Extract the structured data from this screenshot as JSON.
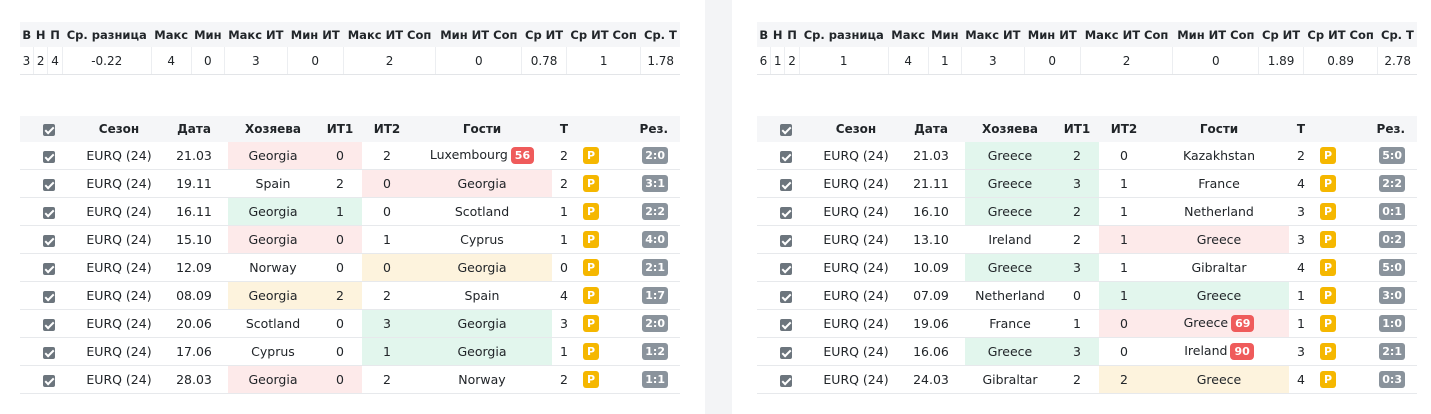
{
  "panels": [
    {
      "summary": {
        "headers": [
          "В",
          "Н",
          "П",
          "Ср. разница",
          "Макс",
          "Мин",
          "Макс ИТ",
          "Мин ИТ",
          "Макс ИТ Соп",
          "Мин ИТ Соп",
          "Ср ИТ",
          "Ср ИТ Соп",
          "Ср. Т"
        ],
        "values": [
          "3",
          "2",
          "4",
          "-0.22",
          "4",
          "0",
          "3",
          "0",
          "2",
          "0",
          "0.78",
          "1",
          "1.78"
        ]
      },
      "matches": {
        "headers": [
          "Сезон",
          "Дата",
          "Хозяева",
          "ИТ1",
          "ИТ2",
          "Гости",
          "Т",
          "Рез."
        ],
        "rows": [
          {
            "season": "EURQ (24)",
            "date": "21.03",
            "home": "Georgia",
            "it1": "0",
            "it2": "2",
            "away": "Luxembourg",
            "away_badge": "56",
            "t": "2",
            "p": "P",
            "result": "2:0",
            "highlight": {
              "side": "home",
              "color": "#fdeaea"
            }
          },
          {
            "season": "EURQ (24)",
            "date": "19.11",
            "home": "Spain",
            "it1": "2",
            "it2": "0",
            "away": "Georgia",
            "t": "2",
            "p": "P",
            "result": "3:1",
            "highlight": {
              "side": "away",
              "color": "#fdeaea"
            }
          },
          {
            "season": "EURQ (24)",
            "date": "16.11",
            "home": "Georgia",
            "it1": "1",
            "it2": "0",
            "away": "Scotland",
            "t": "1",
            "p": "P",
            "result": "2:2",
            "highlight": {
              "side": "home",
              "color": "#e2f6ed"
            }
          },
          {
            "season": "EURQ (24)",
            "date": "15.10",
            "home": "Georgia",
            "it1": "0",
            "it2": "1",
            "away": "Cyprus",
            "t": "1",
            "p": "P",
            "result": "4:0",
            "highlight": {
              "side": "home",
              "color": "#fdeaea"
            }
          },
          {
            "season": "EURQ (24)",
            "date": "12.09",
            "home": "Norway",
            "it1": "0",
            "it2": "0",
            "away": "Georgia",
            "t": "0",
            "p": "P",
            "result": "2:1",
            "highlight": {
              "side": "away",
              "color": "#fdf3dd"
            }
          },
          {
            "season": "EURQ (24)",
            "date": "08.09",
            "home": "Georgia",
            "it1": "2",
            "it2": "2",
            "away": "Spain",
            "t": "4",
            "p": "P",
            "result": "1:7",
            "highlight": {
              "side": "home",
              "color": "#fdf3dd"
            }
          },
          {
            "season": "EURQ (24)",
            "date": "20.06",
            "home": "Scotland",
            "it1": "0",
            "it2": "3",
            "away": "Georgia",
            "t": "3",
            "p": "P",
            "result": "2:0",
            "highlight": {
              "side": "away",
              "color": "#e2f6ed"
            }
          },
          {
            "season": "EURQ (24)",
            "date": "17.06",
            "home": "Cyprus",
            "it1": "0",
            "it2": "1",
            "away": "Georgia",
            "t": "1",
            "p": "P",
            "result": "1:2",
            "highlight": {
              "side": "away",
              "color": "#e2f6ed"
            }
          },
          {
            "season": "EURQ (24)",
            "date": "28.03",
            "home": "Georgia",
            "it1": "0",
            "it2": "2",
            "away": "Norway",
            "t": "2",
            "p": "P",
            "result": "1:1",
            "highlight": {
              "side": "home",
              "color": "#fdeaea"
            }
          }
        ]
      }
    },
    {
      "summary": {
        "headers": [
          "В",
          "Н",
          "П",
          "Ср. разница",
          "Макс",
          "Мин",
          "Макс ИТ",
          "Мин ИТ",
          "Макс ИТ Соп",
          "Мин ИТ Соп",
          "Ср ИТ",
          "Ср ИТ Соп",
          "Ср. Т"
        ],
        "values": [
          "6",
          "1",
          "2",
          "1",
          "4",
          "1",
          "3",
          "0",
          "2",
          "0",
          "1.89",
          "0.89",
          "2.78"
        ]
      },
      "matches": {
        "headers": [
          "Сезон",
          "Дата",
          "Хозяева",
          "ИТ1",
          "ИТ2",
          "Гости",
          "Т",
          "Рез."
        ],
        "rows": [
          {
            "season": "EURQ (24)",
            "date": "21.03",
            "home": "Greece",
            "it1": "2",
            "it2": "0",
            "away": "Kazakhstan",
            "t": "2",
            "p": "P",
            "result": "5:0",
            "highlight": {
              "side": "home",
              "color": "#e2f6ed"
            }
          },
          {
            "season": "EURQ (24)",
            "date": "21.11",
            "home": "Greece",
            "it1": "3",
            "it2": "1",
            "away": "France",
            "t": "4",
            "p": "P",
            "result": "2:2",
            "highlight": {
              "side": "home",
              "color": "#e2f6ed"
            }
          },
          {
            "season": "EURQ (24)",
            "date": "16.10",
            "home": "Greece",
            "it1": "2",
            "it2": "1",
            "away": "Netherland",
            "t": "3",
            "p": "P",
            "result": "0:1",
            "highlight": {
              "side": "home",
              "color": "#e2f6ed"
            }
          },
          {
            "season": "EURQ (24)",
            "date": "13.10",
            "home": "Ireland",
            "it1": "2",
            "it2": "1",
            "away": "Greece",
            "t": "3",
            "p": "P",
            "result": "0:2",
            "highlight": {
              "side": "away",
              "color": "#fdeaea"
            }
          },
          {
            "season": "EURQ (24)",
            "date": "10.09",
            "home": "Greece",
            "it1": "3",
            "it2": "1",
            "away": "Gibraltar",
            "t": "4",
            "p": "P",
            "result": "5:0",
            "highlight": {
              "side": "home",
              "color": "#e2f6ed"
            }
          },
          {
            "season": "EURQ (24)",
            "date": "07.09",
            "home": "Netherland",
            "it1": "0",
            "it2": "1",
            "away": "Greece",
            "t": "1",
            "p": "P",
            "result": "3:0",
            "highlight": {
              "side": "away",
              "color": "#e2f6ed"
            }
          },
          {
            "season": "EURQ (24)",
            "date": "19.06",
            "home": "France",
            "it1": "1",
            "it2": "0",
            "away": "Greece",
            "away_badge": "69",
            "t": "1",
            "p": "P",
            "result": "1:0",
            "highlight": {
              "side": "away",
              "color": "#fdeaea"
            }
          },
          {
            "season": "EURQ (24)",
            "date": "16.06",
            "home": "Greece",
            "it1": "3",
            "it2": "0",
            "away": "Ireland",
            "away_badge": "90",
            "t": "3",
            "p": "P",
            "result": "2:1",
            "highlight": {
              "side": "home",
              "color": "#e2f6ed"
            }
          },
          {
            "season": "EURQ (24)",
            "date": "24.03",
            "home": "Gibraltar",
            "it1": "2",
            "it2": "2",
            "away": "Greece",
            "t": "4",
            "p": "P",
            "result": "0:3",
            "highlight": {
              "side": "away",
              "color": "#fdf3dd"
            }
          }
        ]
      }
    }
  ]
}
